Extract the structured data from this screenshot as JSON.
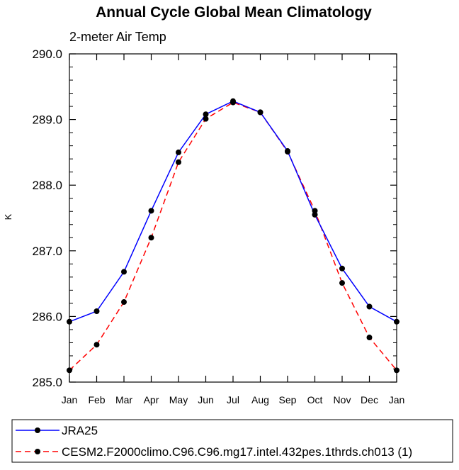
{
  "chart_data": {
    "type": "line",
    "title": "Annual Cycle Global Mean Climatology",
    "subtitle": "2-meter Air Temp",
    "xlabel": "",
    "ylabel": "K",
    "categories": [
      "Jan",
      "Feb",
      "Mar",
      "Apr",
      "May",
      "Jun",
      "Jul",
      "Aug",
      "Sep",
      "Oct",
      "Nov",
      "Dec",
      "Jan"
    ],
    "ylim": [
      285.0,
      290.0
    ],
    "yticks": [
      285.0,
      286.0,
      287.0,
      288.0,
      289.0,
      290.0
    ],
    "ytick_labels": [
      "285.0",
      "286.0",
      "287.0",
      "288.0",
      "289.0",
      "290.0"
    ],
    "grid": false,
    "legend_position": "bottom",
    "series": [
      {
        "name": "JRA25",
        "color": "#0000ff",
        "line_style": "solid",
        "marker": "filled-circle",
        "values": [
          285.92,
          286.08,
          286.68,
          287.61,
          288.5,
          289.08,
          289.28,
          289.11,
          288.52,
          287.55,
          286.73,
          286.15,
          285.92
        ]
      },
      {
        "name": "CESM2.F2000climo.C96.C96.mg17.intel.432pes.1thrds.ch013 (1)",
        "color": "#ff0000",
        "line_style": "dashed",
        "marker": "filled-circle",
        "values": [
          285.18,
          285.57,
          286.22,
          287.2,
          288.35,
          289.01,
          289.26,
          289.11,
          288.51,
          287.61,
          286.51,
          285.68,
          285.18
        ]
      }
    ]
  }
}
